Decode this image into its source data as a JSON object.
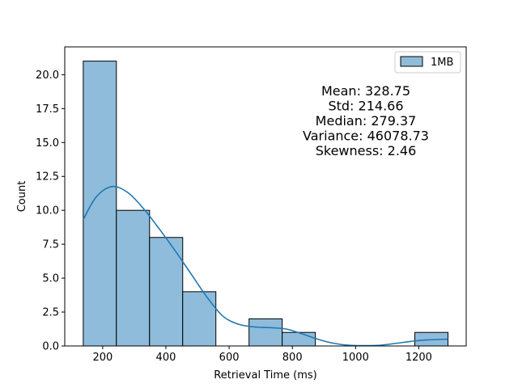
{
  "chart_data": {
    "type": "bar",
    "subtype": "histogram-with-kde",
    "xlabel": "Retrieval Time (ms)",
    "ylabel": "Count",
    "xlim": [
      80,
      1350
    ],
    "ylim": [
      0,
      22.05
    ],
    "x_ticks": [
      200,
      400,
      600,
      800,
      1000,
      1200
    ],
    "y_ticks": [
      0.0,
      2.5,
      5.0,
      7.5,
      10.0,
      12.5,
      15.0,
      17.5,
      20.0
    ],
    "x_tick_labels": [
      "200",
      "400",
      "600",
      "800",
      "1000",
      "1200"
    ],
    "y_tick_labels": [
      "0.0",
      "2.5",
      "5.0",
      "7.5",
      "10.0",
      "12.5",
      "15.0",
      "17.5",
      "20.0"
    ],
    "bin_edges": [
      138.5,
      243.4,
      348.3,
      453.2,
      558.1,
      663.0,
      767.9,
      872.8,
      977.7,
      1082.6,
      1187.5,
      1292.4
    ],
    "counts": [
      21,
      10,
      8,
      4,
      0,
      2,
      1,
      0,
      0,
      0,
      1
    ],
    "series": [
      {
        "name": "1MB",
        "color": "#1f77b4",
        "fill": "#8fbcdb",
        "kde": {
          "x": [
            138,
            180,
            230,
            280,
            330,
            380,
            430,
            480,
            530,
            580,
            630,
            680,
            730,
            780,
            830,
            880,
            930,
            980,
            1030,
            1080,
            1130,
            1180,
            1230,
            1292
          ],
          "y": [
            9.3,
            11.0,
            11.75,
            11.3,
            10.1,
            8.6,
            7.0,
            5.3,
            3.6,
            2.2,
            1.6,
            1.4,
            1.35,
            1.25,
            0.9,
            0.5,
            0.2,
            0.05,
            0.03,
            0.06,
            0.2,
            0.35,
            0.45,
            0.5
          ]
        }
      }
    ],
    "legend": {
      "position": "top-right"
    },
    "annotation": {
      "lines": [
        "Mean: 328.75",
        "Std: 214.66",
        "Median: 279.37",
        "Variance: 46078.73",
        "Skewness: 2.46"
      ]
    },
    "grid": false
  }
}
